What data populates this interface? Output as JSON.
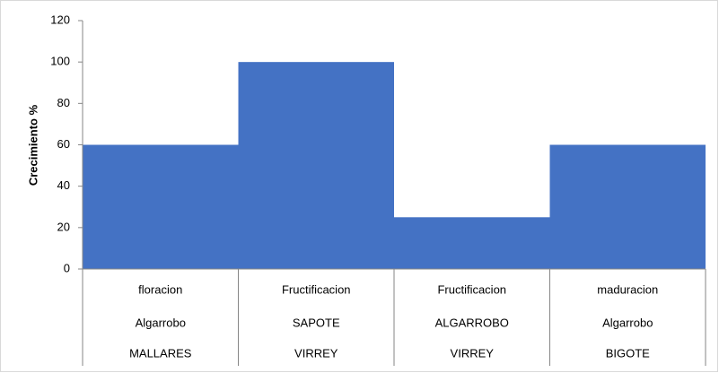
{
  "chart_data": {
    "type": "bar",
    "y_label": "Crecimiento %",
    "categories": [
      [
        "floracion",
        "Algarrobo",
        "MALLARES"
      ],
      [
        "Fructificacion",
        "SAPOTE",
        "VIRREY"
      ],
      [
        "Fructificacion",
        "ALGARROBO",
        "VIRREY"
      ],
      [
        "maduracion",
        "Algarrobo",
        "BIGOTE"
      ]
    ],
    "values": [
      60,
      100,
      25,
      60
    ],
    "color": "#4472c4",
    "ylim": [
      0,
      120
    ],
    "yticks": [
      0,
      20,
      40,
      60,
      80,
      100,
      120
    ],
    "grid": false
  }
}
